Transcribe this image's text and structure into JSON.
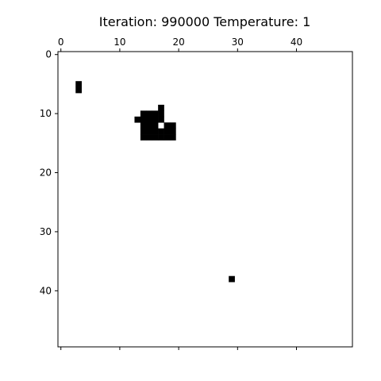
{
  "chart_data": {
    "type": "heatmap",
    "title": "Iteration: 990000 Temperature: 1",
    "xlabel": "",
    "ylabel": "",
    "grid_size": [
      50,
      50
    ],
    "xlim": [
      0,
      49
    ],
    "ylim": [
      49,
      0
    ],
    "x_axis_position": "top",
    "x_ticks": [
      0,
      10,
      20,
      30,
      40
    ],
    "y_ticks": [
      0,
      10,
      20,
      30,
      40
    ],
    "grid": false,
    "colors": {
      "on": "#000000",
      "off": "#ffffff"
    },
    "black_cells": [
      [
        3,
        5
      ],
      [
        3,
        6
      ],
      [
        17,
        9
      ],
      [
        14,
        10
      ],
      [
        15,
        10
      ],
      [
        16,
        10
      ],
      [
        17,
        10
      ],
      [
        13,
        11
      ],
      [
        14,
        11
      ],
      [
        15,
        11
      ],
      [
        16,
        11
      ],
      [
        17,
        11
      ],
      [
        14,
        12
      ],
      [
        15,
        12
      ],
      [
        16,
        12
      ],
      [
        18,
        12
      ],
      [
        19,
        12
      ],
      [
        14,
        13
      ],
      [
        15,
        13
      ],
      [
        16,
        13
      ],
      [
        17,
        13
      ],
      [
        18,
        13
      ],
      [
        19,
        13
      ],
      [
        14,
        14
      ],
      [
        15,
        14
      ],
      [
        16,
        14
      ],
      [
        17,
        14
      ],
      [
        18,
        14
      ],
      [
        19,
        14
      ],
      [
        29,
        38
      ]
    ]
  }
}
